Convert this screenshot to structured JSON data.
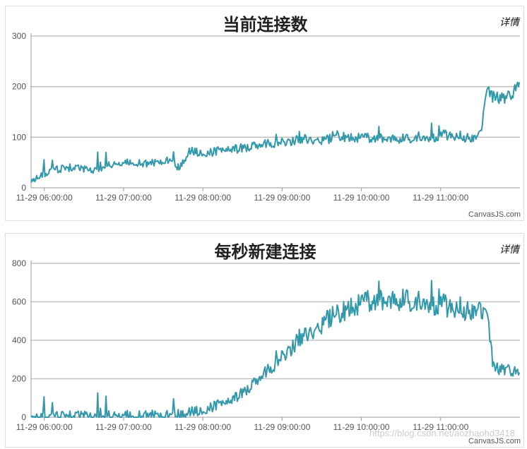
{
  "chart_data": [
    {
      "type": "line",
      "title": "当前连接数",
      "detail_label": "详情",
      "credit": "CanvasJS.com",
      "ylim": [
        0,
        300
      ],
      "y_ticks": [
        0,
        100,
        200,
        300
      ],
      "x_tick_labels": [
        "11-29 06:00:00",
        "11-29 07:00:00",
        "11-29 08:00:00",
        "11-29 09:00:00",
        "11-29 10:00:00",
        "11-29 11:00:00"
      ],
      "line_color": "#3399aa",
      "grid": true,
      "series": [
        {
          "x_minutes": [
            0,
            15,
            30,
            45,
            60,
            75,
            90,
            105,
            112,
            120,
            135,
            150,
            165,
            180,
            195,
            210,
            225,
            230,
            240,
            255,
            270,
            285,
            290,
            300,
            315,
            330,
            335,
            340,
            345,
            350,
            360,
            365,
            370
          ],
          "values": [
            15,
            35,
            40,
            35,
            45,
            50,
            48,
            55,
            40,
            72,
            70,
            75,
            80,
            88,
            92,
            96,
            95,
            105,
            100,
            98,
            99,
            97,
            100,
            98,
            105,
            100,
            98,
            102,
            190,
            180,
            175,
            185,
            205
          ]
        }
      ]
    },
    {
      "type": "line",
      "title": "每秒新建连接",
      "detail_label": "详情",
      "credit": "CanvasJS.com",
      "watermark": "https://blog.csdn.net/aozhaohd3418",
      "ylim": [
        0,
        800
      ],
      "y_ticks": [
        0,
        200,
        400,
        600,
        800
      ],
      "x_tick_labels": [
        "11-29 06:00:00",
        "11-29 07:00:00",
        "11-29 08:00:00",
        "11-29 09:00:00",
        "11-29 10:00:00",
        "11-29 11:00:00"
      ],
      "line_color": "#3399aa",
      "grid": true,
      "series": [
        {
          "x_minutes": [
            0,
            30,
            60,
            90,
            105,
            120,
            135,
            150,
            165,
            180,
            195,
            210,
            225,
            240,
            255,
            270,
            285,
            300,
            315,
            330,
            340,
            345,
            350,
            360,
            370
          ],
          "values": [
            3,
            5,
            8,
            10,
            12,
            25,
            50,
            80,
            150,
            250,
            350,
            440,
            510,
            570,
            600,
            620,
            610,
            590,
            580,
            560,
            540,
            530,
            260,
            240,
            220
          ]
        }
      ]
    }
  ]
}
